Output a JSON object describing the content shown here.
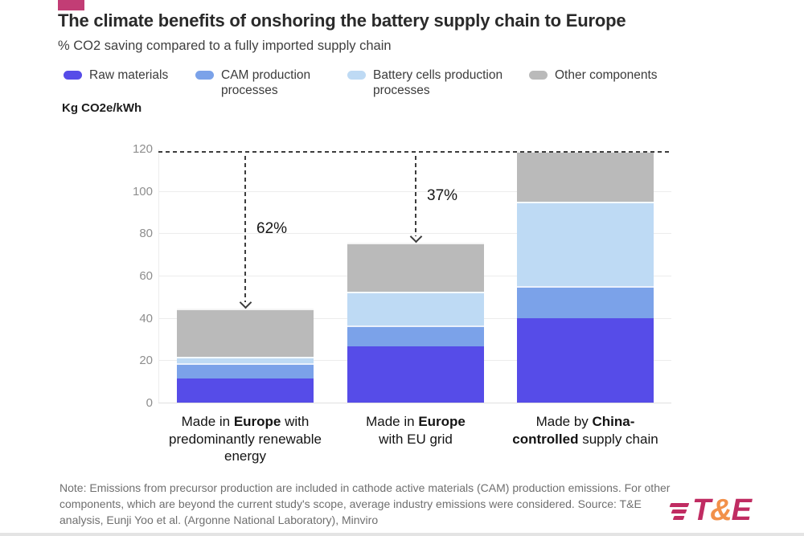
{
  "accent_color": "#c23d75",
  "header": {
    "title": "The climate benefits of onshoring the battery supply chain to Europe",
    "subtitle": "% CO2 saving compared to a fully imported supply chain"
  },
  "legend": [
    {
      "label": "Raw materials",
      "color": "#564ce8"
    },
    {
      "label": "CAM production processes",
      "color": "#7ba2e9"
    },
    {
      "label": "Battery cells production processes",
      "color": "#bedaf4"
    },
    {
      "label": "Other components",
      "color": "#bababa"
    }
  ],
  "axis_unit_label": "Kg CO2e/kWh",
  "chart_data": {
    "type": "bar",
    "subtype": "stacked",
    "title": "The climate benefits of onshoring the battery supply chain to Europe",
    "ylabel": "Kg CO2e/kWh",
    "ylim": [
      0,
      120
    ],
    "yticks": [
      0,
      20,
      40,
      60,
      80,
      100,
      120
    ],
    "grid": true,
    "legend_position": "top",
    "reference_line": {
      "value": 119,
      "style": "dashed",
      "color": "#3d3d3d"
    },
    "categories": [
      {
        "pre": "Made in ",
        "bold": "Europe",
        "post": " with predominantly renewable energy"
      },
      {
        "pre": "Made in ",
        "bold": "Europe",
        "post": " with EU grid"
      },
      {
        "pre": "Made by ",
        "bold": "China-controlled",
        "post": " supply chain"
      }
    ],
    "series": [
      {
        "name": "Raw materials",
        "color": "#564ce8",
        "values": [
          11.5,
          26.5,
          40
        ]
      },
      {
        "name": "CAM production processes",
        "color": "#7ba2e9",
        "values": [
          7,
          10,
          15
        ]
      },
      {
        "name": "Battery cells production processes",
        "color": "#bedaf4",
        "values": [
          3,
          16,
          40
        ]
      },
      {
        "name": "Other components",
        "color": "#bababa",
        "values": [
          23,
          23,
          24
        ]
      }
    ],
    "totals": [
      44.5,
      75.5,
      119
    ],
    "annotations": [
      {
        "label": "62%",
        "bar_index": 0
      },
      {
        "label": "37%",
        "bar_index": 1
      }
    ]
  },
  "note": "Note: Emissions from precursor production are included in cathode active materials (CAM) production emissions. For other components, which are beyond the current study's scope, average industry emissions were considered. Source: T&E analysis, Eunji Yoo et al. (Argonne National Laboratory), Minviro",
  "logo": {
    "t": "T",
    "amp": "&",
    "e": "E",
    "crimson": "#c02c62",
    "orange": "#f2914a"
  }
}
